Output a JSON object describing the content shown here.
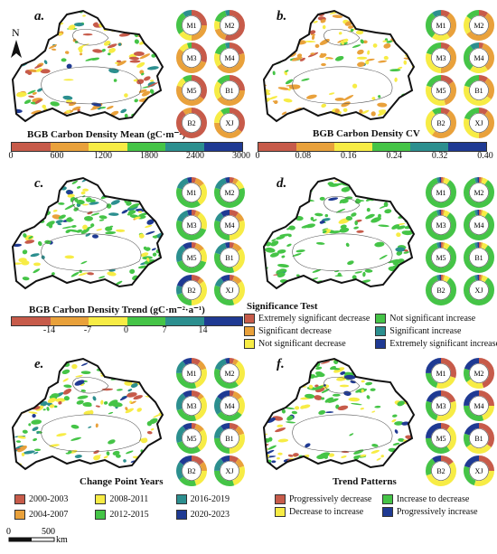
{
  "palette": {
    "red": "#c75b4a",
    "orange": "#e9a13b",
    "yellow": "#f7ec45",
    "green": "#45c447",
    "teal": "#2c8f8f",
    "navy": "#1f3a93",
    "map_fill": "#e6e6e6",
    "map_stroke": "#111111"
  },
  "north_arrow": {
    "label": "N"
  },
  "scale_bar": {
    "ticks": [
      "0",
      "500"
    ],
    "unit": "km"
  },
  "panels": {
    "a": {
      "label": "a.",
      "title": "BGB  Carbon Density Mean  (gC·m⁻²)",
      "ticks": [
        "0",
        "600",
        "1200",
        "1800",
        "2400",
        "3000"
      ],
      "colors": [
        "#c75b4a",
        "#e9a13b",
        "#f7ec45",
        "#45c447",
        "#2c8f8f",
        "#1f3a93"
      ]
    },
    "b": {
      "label": "b.",
      "title": "BGB  Carbon Density CV",
      "ticks": [
        "0",
        "0.08",
        "0.16",
        "0.24",
        "0.32",
        "0.40"
      ],
      "colors": [
        "#c75b4a",
        "#e9a13b",
        "#f7ec45",
        "#45c447",
        "#2c8f8f",
        "#1f3a93"
      ]
    },
    "c": {
      "label": "c.",
      "title": "BGB Carbon Density Trend  (gC·m⁻²·a⁻¹)",
      "ticks": [
        "-14",
        "-7",
        "0",
        "7",
        "14"
      ],
      "colors": [
        "#c75b4a",
        "#e9a13b",
        "#f7ec45",
        "#45c447",
        "#2c8f8f",
        "#1f3a93"
      ]
    },
    "d": {
      "label": "d.",
      "legend_title": "Significance Test",
      "legend": [
        {
          "label": "Extremely significant decrease",
          "color": "#c75b4a"
        },
        {
          "label": "Not significant increase",
          "color": "#45c447"
        },
        {
          "label": "Significant decrease",
          "color": "#e9a13b"
        },
        {
          "label": "Significant increase",
          "color": "#2c8f8f"
        },
        {
          "label": "Not significant decrease",
          "color": "#f7ec45"
        },
        {
          "label": "Extremely significant increase",
          "color": "#1f3a93"
        }
      ]
    },
    "e": {
      "label": "e.",
      "legend_title": "Change Point Years",
      "legend": [
        {
          "label": "2000-2003",
          "color": "#c75b4a"
        },
        {
          "label": "2008-2011",
          "color": "#f7ec45"
        },
        {
          "label": "2016-2019",
          "color": "#2c8f8f"
        },
        {
          "label": "2004-2007",
          "color": "#e9a13b"
        },
        {
          "label": "2012-2015",
          "color": "#45c447"
        },
        {
          "label": "2020-2023",
          "color": "#1f3a93"
        }
      ]
    },
    "f": {
      "label": "f.",
      "legend_title": "Trend Patterns",
      "legend": [
        {
          "label": "Progressively decrease",
          "color": "#c75b4a"
        },
        {
          "label": "Increase to decrease",
          "color": "#45c447"
        },
        {
          "label": "Decrease to increase",
          "color": "#f7ec45"
        },
        {
          "label": "Progressively increase",
          "color": "#1f3a93"
        }
      ]
    }
  },
  "donut_labels": [
    "M1",
    "M2",
    "M3",
    "M4",
    "M5",
    "B1",
    "B2",
    "XJ"
  ],
  "donut_shares": {
    "a": [
      [
        0.25,
        0.25,
        0.15,
        0.25,
        0.1,
        0
      ],
      [
        0.55,
        0.15,
        0.1,
        0.15,
        0.05,
        0
      ],
      [
        0.3,
        0.55,
        0.1,
        0.05,
        0,
        0
      ],
      [
        0.2,
        0.45,
        0.15,
        0.15,
        0.05,
        0
      ],
      [
        0.35,
        0.45,
        0.1,
        0.1,
        0,
        0
      ],
      [
        0.25,
        0.4,
        0.2,
        0.15,
        0,
        0
      ],
      [
        0.9,
        0.1,
        0,
        0,
        0,
        0
      ],
      [
        0.35,
        0.4,
        0.15,
        0.1,
        0,
        0
      ]
    ],
    "b": [
      [
        0.1,
        0.3,
        0.2,
        0.3,
        0.1,
        0
      ],
      [
        0.1,
        0.55,
        0.2,
        0.15,
        0,
        0
      ],
      [
        0.1,
        0.4,
        0.3,
        0.2,
        0,
        0
      ],
      [
        0.05,
        0.35,
        0.2,
        0.3,
        0.1,
        0
      ],
      [
        0.15,
        0.3,
        0.35,
        0.2,
        0,
        0
      ],
      [
        0.1,
        0.25,
        0.45,
        0.2,
        0,
        0
      ],
      [
        0.1,
        0.5,
        0.3,
        0.1,
        0,
        0
      ],
      [
        0.1,
        0.4,
        0.3,
        0.2,
        0,
        0
      ]
    ],
    "c": [
      [
        0.05,
        0.1,
        0.25,
        0.4,
        0.15,
        0.05
      ],
      [
        0.05,
        0.05,
        0.1,
        0.6,
        0.15,
        0.05
      ],
      [
        0.05,
        0.05,
        0.2,
        0.5,
        0.15,
        0.05
      ],
      [
        0.1,
        0.1,
        0.3,
        0.3,
        0.1,
        0.1
      ],
      [
        0.05,
        0.1,
        0.15,
        0.4,
        0.2,
        0.1
      ],
      [
        0.05,
        0.1,
        0.3,
        0.35,
        0.15,
        0.05
      ],
      [
        0.1,
        0.05,
        0.35,
        0.2,
        0.1,
        0.2
      ],
      [
        0.05,
        0.1,
        0.3,
        0.35,
        0.1,
        0.1
      ]
    ],
    "d": [
      [
        0.02,
        0.02,
        0.06,
        0.85,
        0.03,
        0.02
      ],
      [
        0.02,
        0.02,
        0.06,
        0.85,
        0.03,
        0.02
      ],
      [
        0.02,
        0.02,
        0.06,
        0.85,
        0.03,
        0.02
      ],
      [
        0.02,
        0.02,
        0.06,
        0.85,
        0.03,
        0.02
      ],
      [
        0.02,
        0.02,
        0.06,
        0.85,
        0.03,
        0.02
      ],
      [
        0.02,
        0.02,
        0.06,
        0.85,
        0.03,
        0.02
      ],
      [
        0.02,
        0.02,
        0.06,
        0.85,
        0.03,
        0.02
      ],
      [
        0.02,
        0.02,
        0.06,
        0.85,
        0.03,
        0.02
      ]
    ],
    "e": [
      [
        0.1,
        0.1,
        0.25,
        0.3,
        0.15,
        0.1
      ],
      [
        0.05,
        0.05,
        0.3,
        0.4,
        0.15,
        0.05
      ],
      [
        0.1,
        0.05,
        0.3,
        0.25,
        0.2,
        0.1
      ],
      [
        0.05,
        0.1,
        0.2,
        0.3,
        0.2,
        0.15
      ],
      [
        0.05,
        0.1,
        0.25,
        0.3,
        0.2,
        0.1
      ],
      [
        0.1,
        0.1,
        0.3,
        0.25,
        0.15,
        0.1
      ],
      [
        0.15,
        0.1,
        0.2,
        0.2,
        0.2,
        0.15
      ],
      [
        0.1,
        0.1,
        0.25,
        0.3,
        0.15,
        0.1
      ]
    ],
    "f": [
      [
        0.3,
        0,
        0.25,
        0.2,
        0,
        0.25
      ],
      [
        0.45,
        0,
        0.2,
        0.15,
        0,
        0.2
      ],
      [
        0.2,
        0,
        0.35,
        0.25,
        0,
        0.2
      ],
      [
        0.25,
        0,
        0.2,
        0.3,
        0,
        0.25
      ],
      [
        0.1,
        0,
        0.3,
        0.35,
        0,
        0.25
      ],
      [
        0.35,
        0,
        0.3,
        0.15,
        0,
        0.2
      ],
      [
        0.15,
        0,
        0.55,
        0.2,
        0,
        0.1
      ],
      [
        0.25,
        0,
        0.3,
        0.25,
        0,
        0.2
      ]
    ]
  }
}
